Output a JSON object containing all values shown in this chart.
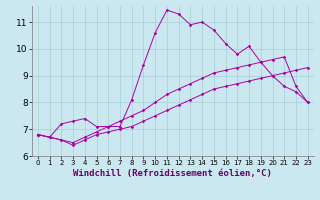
{
  "title": "",
  "xlabel": "Windchill (Refroidissement éolien,°C)",
  "bg_color": "#cbe8f0",
  "grid_color": "#a8cdd6",
  "line_color": "#aa00aa",
  "x_values": [
    0,
    1,
    2,
    3,
    4,
    5,
    6,
    7,
    8,
    9,
    10,
    11,
    12,
    13,
    14,
    15,
    16,
    17,
    18,
    19,
    20,
    21,
    22,
    23
  ],
  "line1": [
    6.8,
    6.7,
    6.6,
    6.4,
    6.6,
    6.8,
    6.9,
    7.0,
    7.1,
    7.3,
    7.5,
    7.7,
    7.9,
    8.1,
    8.3,
    8.5,
    8.6,
    8.7,
    8.8,
    8.9,
    9.0,
    9.1,
    9.2,
    9.3
  ],
  "line2": [
    6.8,
    6.7,
    6.6,
    6.5,
    6.7,
    6.9,
    7.1,
    7.3,
    7.5,
    7.7,
    8.0,
    8.3,
    8.5,
    8.7,
    8.9,
    9.1,
    9.2,
    9.3,
    9.4,
    9.5,
    9.6,
    9.7,
    8.6,
    8.0
  ],
  "line3": [
    6.8,
    6.7,
    7.2,
    7.3,
    7.4,
    7.1,
    7.1,
    7.1,
    8.1,
    9.4,
    10.6,
    11.45,
    11.3,
    10.9,
    11.0,
    10.7,
    10.2,
    9.8,
    10.1,
    9.5,
    9.0,
    8.6,
    8.4,
    8.0
  ],
  "ylim": [
    6.0,
    11.6
  ],
  "yticks": [
    6,
    7,
    8,
    9,
    10,
    11
  ],
  "xtick_fontsize": 5.0,
  "ytick_fontsize": 6.5,
  "xlabel_fontsize": 6.5
}
